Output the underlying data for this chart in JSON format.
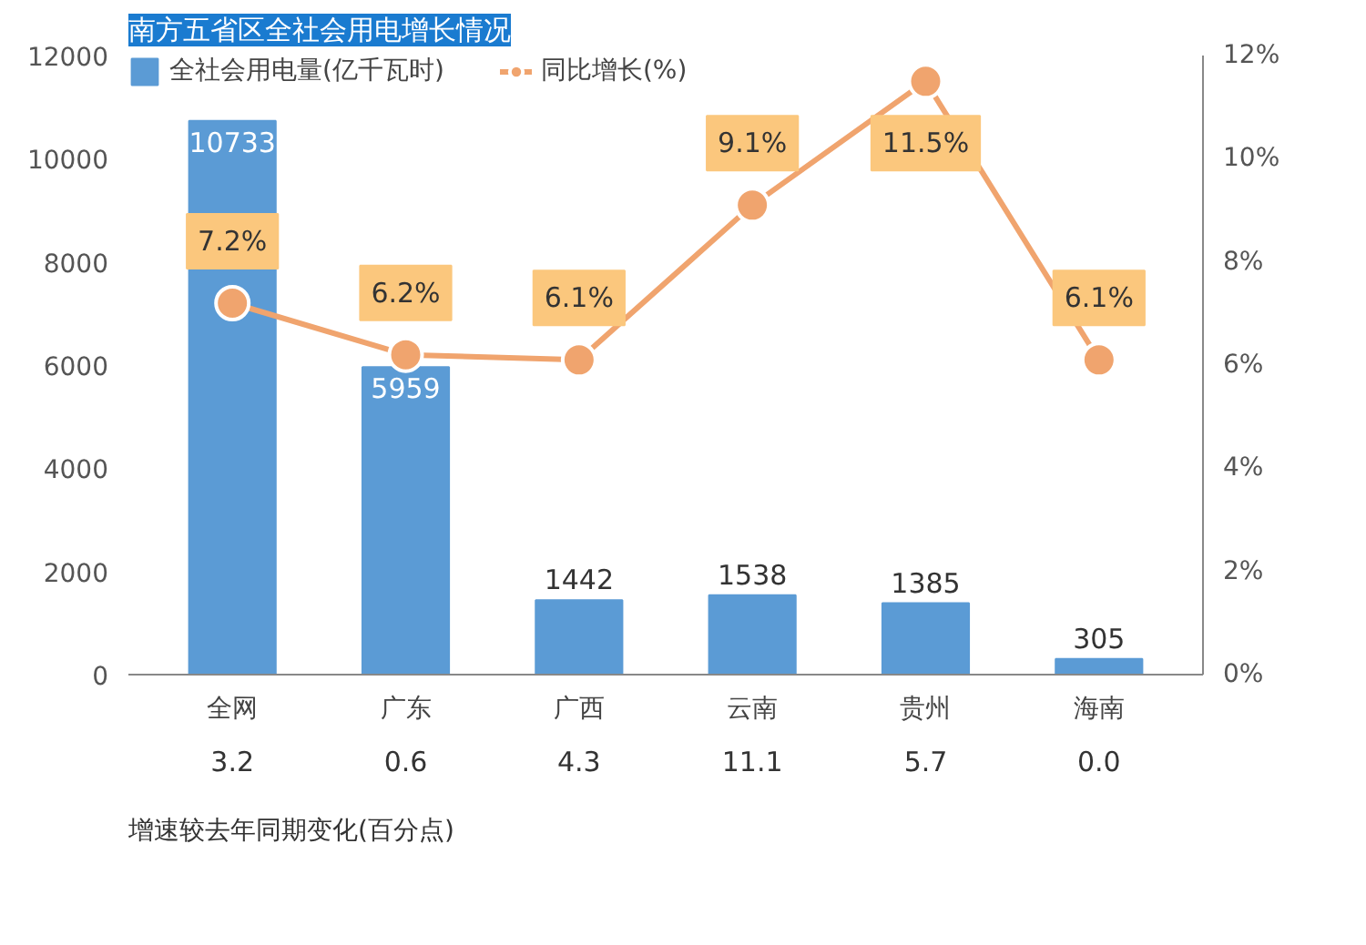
{
  "chart_data": {
    "type": "bar",
    "title": "南方五省区全社会用电增长情况",
    "categories": [
      "全网",
      "广东",
      "广西",
      "云南",
      "贵州",
      "海南"
    ],
    "series": [
      {
        "name": "全社会用电量(亿千瓦时)",
        "color": "#5b9bd5",
        "values": [
          10733,
          5959,
          1442,
          1538,
          1385,
          305
        ]
      },
      {
        "name": "同比增长(%)",
        "type": "line",
        "axis": "y2",
        "color": "#f0a46e",
        "values": [
          7.2,
          6.2,
          6.1,
          9.1,
          11.5,
          6.1
        ],
        "value_labels": [
          "7.2%",
          "6.2%",
          "6.1%",
          "9.1%",
          "11.5%",
          "6.1%"
        ]
      }
    ],
    "ylim": [
      0,
      12000
    ],
    "yticks": [
      0,
      2000,
      4000,
      6000,
      8000,
      10000,
      12000
    ],
    "y2lim": [
      0,
      12
    ],
    "y2ticks": [
      {
        "value": 0,
        "label": "0%"
      },
      {
        "value": 2,
        "label": "2%"
      },
      {
        "value": 4,
        "label": "4%"
      },
      {
        "value": 6,
        "label": "6%"
      },
      {
        "value": 8,
        "label": "8%"
      },
      {
        "value": 10,
        "label": "10%"
      },
      {
        "value": 12,
        "label": "12%"
      }
    ],
    "data_labels": true,
    "marker": "circle",
    "legend": "top left",
    "grid": false,
    "annotations": [
      "增速较去年同期变化(百分点)",
      "3.2",
      "0.6",
      "4.3",
      "11.1",
      "5.7",
      "0.0"
    ]
  }
}
